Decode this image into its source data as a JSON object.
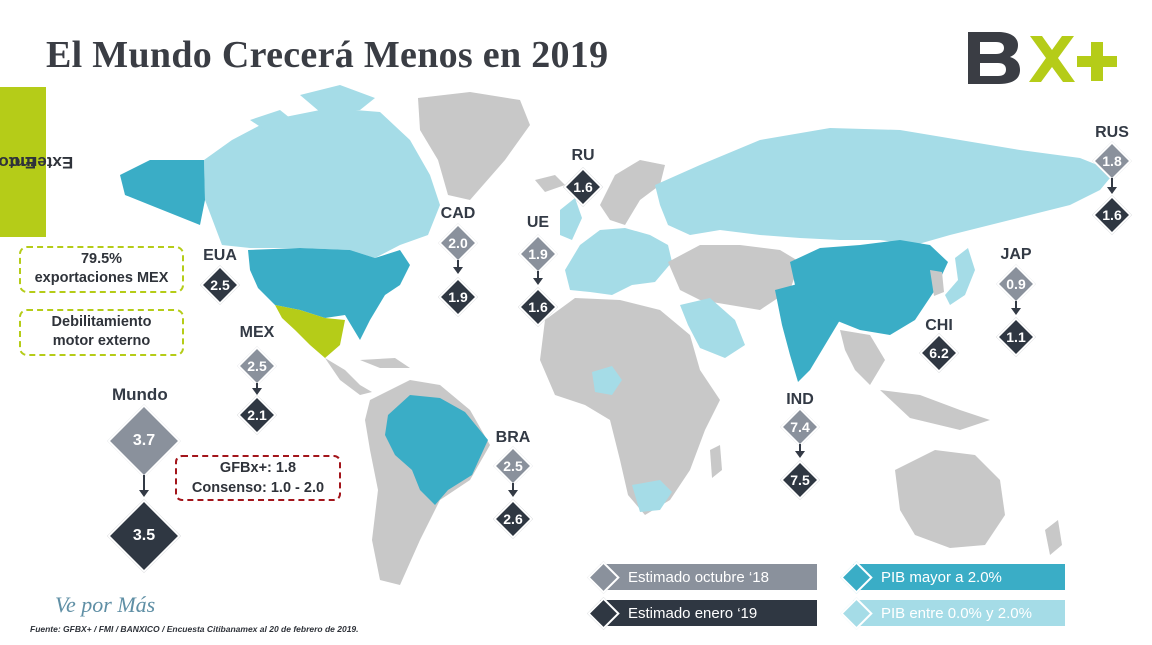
{
  "title": "El Mundo Crecerá Menos en 2019",
  "logo": {
    "text": "BX+",
    "colors": {
      "letter": "#3a3d44",
      "accent": "#b5cc18"
    }
  },
  "side_tab": {
    "line1": "Entorno",
    "line2": "Externo"
  },
  "colors": {
    "pib_above_2": "#3aadc6",
    "pib_between_0_2": "#a5dce7",
    "other_countries": "#c8c8c8",
    "mexico": "#b5cc18",
    "diamond_october": "#8a919c",
    "diamond_january": "#2f3742"
  },
  "callouts": {
    "exports": {
      "line1": "79.5%",
      "line2": "exportaciones MEX"
    },
    "weakening": {
      "line1": "Debilitamiento",
      "line2": "motor externo"
    }
  },
  "gfb_box": {
    "line1": "GFBx+: 1.8",
    "line2": "Consenso: 1.0 - 2.0"
  },
  "world": {
    "label": "Mundo",
    "octubre_18": "3.7",
    "enero_19": "3.5"
  },
  "countries": [
    {
      "code": "EUA",
      "octubre_18": null,
      "enero_19": "2.5",
      "category": "pib_above_2"
    },
    {
      "code": "MEX",
      "octubre_18": "2.5",
      "enero_19": "2.1",
      "category": "mexico"
    },
    {
      "code": "CAD",
      "octubre_18": "2.0",
      "enero_19": "1.9",
      "category": "pib_between_0_2"
    },
    {
      "code": "RU",
      "octubre_18": null,
      "enero_19": "1.6",
      "category": "pib_between_0_2"
    },
    {
      "code": "UE",
      "octubre_18": "1.9",
      "enero_19": "1.6",
      "category": "pib_between_0_2"
    },
    {
      "code": "RUS",
      "octubre_18": "1.8",
      "enero_19": "1.6",
      "category": "pib_between_0_2"
    },
    {
      "code": "JAP",
      "octubre_18": "0.9",
      "enero_19": "1.1",
      "category": "pib_between_0_2"
    },
    {
      "code": "CHI",
      "octubre_18": null,
      "enero_19": "6.2",
      "category": "pib_above_2"
    },
    {
      "code": "IND",
      "octubre_18": "7.4",
      "enero_19": "7.5",
      "category": "pib_above_2"
    },
    {
      "code": "BRA",
      "octubre_18": "2.5",
      "enero_19": "2.6",
      "category": "pib_above_2"
    }
  ],
  "legend": {
    "october": "Estimado octubre ‘18",
    "january": "Estimado enero ‘19",
    "pib_above": "PIB mayor a 2.0%",
    "pib_between": "PIB entre 0.0% y 2.0%"
  },
  "slogan": "Ve por Más",
  "source": "Fuente: GFBX+ / FMI / BANXICO / Encuesta Citibanamex al 20 de febrero de 2019."
}
